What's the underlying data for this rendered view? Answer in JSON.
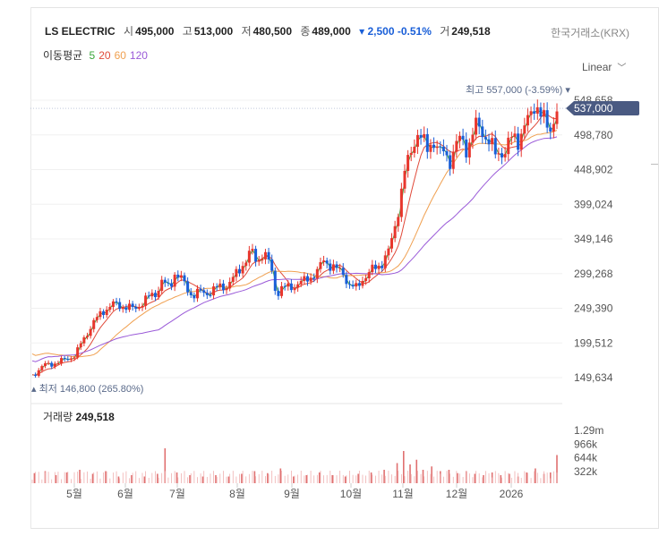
{
  "header": {
    "name": "LS ELECTRIC",
    "open_label": "시",
    "open": "495,000",
    "high_label": "고",
    "high": "513,000",
    "low_label": "저",
    "low": "480,500",
    "close_label": "종",
    "close": "489,000",
    "change": "▾ 2,500 -0.51%",
    "volume_label": "거",
    "volume": "249,518",
    "exchange": "한국거래소(KRX)"
  },
  "moving_average": {
    "label": "이동평균",
    "periods": [
      {
        "text": "5",
        "color": "#3aa53a"
      },
      {
        "text": "20",
        "color": "#e04a3a"
      },
      {
        "text": "60",
        "color": "#f0a050"
      },
      {
        "text": "120",
        "color": "#9a5ad8"
      }
    ]
  },
  "scale_selector": {
    "label": "Linear",
    "icon": "chevron-down-icon"
  },
  "volume_panel": {
    "label": "거래량",
    "value": "249,518"
  },
  "chart_data": {
    "type": "candlestick",
    "price_axis": {
      "ticks": [
        "548,658",
        "498,780",
        "448,902",
        "399,024",
        "349,146",
        "299,268",
        "249,390",
        "199,512",
        "149,634"
      ],
      "range": [
        149634,
        548658
      ]
    },
    "volume_axis": {
      "ticks": [
        "1.29m",
        "966k",
        "644k",
        "322k"
      ]
    },
    "x_ticks": [
      "5월",
      "6월",
      "7월",
      "8월",
      "9월",
      "10월",
      "11월",
      "12월",
      "2026"
    ],
    "current_price": {
      "label": "537,000",
      "value": 537000
    },
    "high_marker": {
      "text": "최고 557,000 (-3.59%)",
      "value": 557000
    },
    "low_marker": {
      "text": "최저 146,800 (265.80%)",
      "value": 146800
    },
    "colors": {
      "up": "#e8362d",
      "down": "#1a5fd8",
      "ma5": "#3aa53a",
      "ma20": "#e04a3a",
      "ma60": "#f0a050",
      "ma120": "#9a5ad8",
      "volume": "#e07070"
    },
    "closes": [
      {
        "t": 0,
        "c": 152000
      },
      {
        "t": 10,
        "c": 167000
      },
      {
        "t": 20,
        "c": 170000
      },
      {
        "t": 30,
        "c": 175000
      },
      {
        "t": 40,
        "c": 182000
      },
      {
        "t": 45,
        "c": 198000
      },
      {
        "t": 55,
        "c": 225000
      },
      {
        "t": 65,
        "c": 245000
      },
      {
        "t": 75,
        "c": 255000
      },
      {
        "t": 85,
        "c": 252000
      },
      {
        "t": 95,
        "c": 248000
      },
      {
        "t": 105,
        "c": 262000
      },
      {
        "t": 115,
        "c": 272000
      },
      {
        "t": 120,
        "c": 288000
      },
      {
        "t": 127,
        "c": 278000
      },
      {
        "t": 132,
        "c": 300000
      },
      {
        "t": 138,
        "c": 292000
      },
      {
        "t": 142,
        "c": 280000
      },
      {
        "t": 148,
        "c": 268000
      },
      {
        "t": 155,
        "c": 273000
      },
      {
        "t": 160,
        "c": 270000
      },
      {
        "t": 170,
        "c": 278000
      },
      {
        "t": 180,
        "c": 282000
      },
      {
        "t": 186,
        "c": 292000
      },
      {
        "t": 192,
        "c": 305000
      },
      {
        "t": 198,
        "c": 320000
      },
      {
        "t": 203,
        "c": 332000
      },
      {
        "t": 208,
        "c": 315000
      },
      {
        "t": 213,
        "c": 328000
      },
      {
        "t": 218,
        "c": 322000
      },
      {
        "t": 222,
        "c": 300000
      },
      {
        "t": 226,
        "c": 270000
      },
      {
        "t": 232,
        "c": 280000
      },
      {
        "t": 238,
        "c": 278000
      },
      {
        "t": 245,
        "c": 285000
      },
      {
        "t": 252,
        "c": 288000
      },
      {
        "t": 258,
        "c": 295000
      },
      {
        "t": 264,
        "c": 302000
      },
      {
        "t": 270,
        "c": 318000
      },
      {
        "t": 276,
        "c": 312000
      },
      {
        "t": 282,
        "c": 305000
      },
      {
        "t": 288,
        "c": 300000
      },
      {
        "t": 294,
        "c": 282000
      },
      {
        "t": 300,
        "c": 278000
      },
      {
        "t": 306,
        "c": 292000
      },
      {
        "t": 312,
        "c": 300000
      },
      {
        "t": 318,
        "c": 308000
      },
      {
        "t": 324,
        "c": 315000
      },
      {
        "t": 330,
        "c": 330000
      },
      {
        "t": 335,
        "c": 360000
      },
      {
        "t": 340,
        "c": 400000
      },
      {
        "t": 345,
        "c": 445000
      },
      {
        "t": 350,
        "c": 470000
      },
      {
        "t": 354,
        "c": 492000
      },
      {
        "t": 358,
        "c": 502000
      },
      {
        "t": 362,
        "c": 488000
      },
      {
        "t": 366,
        "c": 478000
      },
      {
        "t": 370,
        "c": 492000
      },
      {
        "t": 374,
        "c": 485000
      },
      {
        "t": 378,
        "c": 470000
      },
      {
        "t": 382,
        "c": 478000
      },
      {
        "t": 386,
        "c": 460000
      },
      {
        "t": 390,
        "c": 472000
      },
      {
        "t": 394,
        "c": 488000
      },
      {
        "t": 398,
        "c": 495000
      },
      {
        "t": 402,
        "c": 480000
      },
      {
        "t": 406,
        "c": 488000
      },
      {
        "t": 410,
        "c": 510000
      },
      {
        "t": 414,
        "c": 512000
      },
      {
        "t": 418,
        "c": 502000
      },
      {
        "t": 422,
        "c": 490000
      },
      {
        "t": 426,
        "c": 480000
      },
      {
        "t": 430,
        "c": 470000
      },
      {
        "t": 434,
        "c": 478000
      },
      {
        "t": 438,
        "c": 472000
      },
      {
        "t": 442,
        "c": 488000
      },
      {
        "t": 446,
        "c": 500000
      },
      {
        "t": 450,
        "c": 492000
      },
      {
        "t": 454,
        "c": 502000
      },
      {
        "t": 458,
        "c": 515000
      },
      {
        "t": 462,
        "c": 530000
      },
      {
        "t": 466,
        "c": 548000
      },
      {
        "t": 470,
        "c": 530000
      },
      {
        "t": 474,
        "c": 520000
      },
      {
        "t": 478,
        "c": 505000
      },
      {
        "t": 482,
        "c": 515000
      },
      {
        "t": 486,
        "c": 537000
      }
    ],
    "volumes": [
      {
        "t": 2,
        "v": 0.15
      },
      {
        "t": 12,
        "v": 0.18
      },
      {
        "t": 22,
        "v": 0.12
      },
      {
        "t": 32,
        "v": 0.16
      },
      {
        "t": 44,
        "v": 0.2
      },
      {
        "t": 56,
        "v": 0.14
      },
      {
        "t": 68,
        "v": 0.18
      },
      {
        "t": 80,
        "v": 0.1
      },
      {
        "t": 92,
        "v": 0.12
      },
      {
        "t": 104,
        "v": 0.1
      },
      {
        "t": 116,
        "v": 0.14
      },
      {
        "t": 123,
        "v": 0.52
      },
      {
        "t": 134,
        "v": 0.16
      },
      {
        "t": 146,
        "v": 0.12
      },
      {
        "t": 158,
        "v": 0.1
      },
      {
        "t": 170,
        "v": 0.12
      },
      {
        "t": 182,
        "v": 0.1
      },
      {
        "t": 194,
        "v": 0.14
      },
      {
        "t": 206,
        "v": 0.18
      },
      {
        "t": 218,
        "v": 0.15
      },
      {
        "t": 230,
        "v": 0.22
      },
      {
        "t": 242,
        "v": 0.1
      },
      {
        "t": 254,
        "v": 0.12
      },
      {
        "t": 266,
        "v": 0.16
      },
      {
        "t": 278,
        "v": 0.12
      },
      {
        "t": 290,
        "v": 0.1
      },
      {
        "t": 302,
        "v": 0.14
      },
      {
        "t": 314,
        "v": 0.16
      },
      {
        "t": 326,
        "v": 0.2
      },
      {
        "t": 338,
        "v": 0.3
      },
      {
        "t": 344,
        "v": 0.48
      },
      {
        "t": 350,
        "v": 0.28
      },
      {
        "t": 356,
        "v": 0.35
      },
      {
        "t": 362,
        "v": 0.2
      },
      {
        "t": 370,
        "v": 0.25
      },
      {
        "t": 378,
        "v": 0.18
      },
      {
        "t": 386,
        "v": 0.2
      },
      {
        "t": 394,
        "v": 0.15
      },
      {
        "t": 402,
        "v": 0.18
      },
      {
        "t": 410,
        "v": 0.14
      },
      {
        "t": 418,
        "v": 0.12
      },
      {
        "t": 426,
        "v": 0.16
      },
      {
        "t": 434,
        "v": 0.12
      },
      {
        "t": 442,
        "v": 0.14
      },
      {
        "t": 450,
        "v": 0.1
      },
      {
        "t": 458,
        "v": 0.16
      },
      {
        "t": 466,
        "v": 0.22
      },
      {
        "t": 474,
        "v": 0.14
      },
      {
        "t": 480,
        "v": 0.16
      },
      {
        "t": 486,
        "v": 0.42
      }
    ]
  }
}
